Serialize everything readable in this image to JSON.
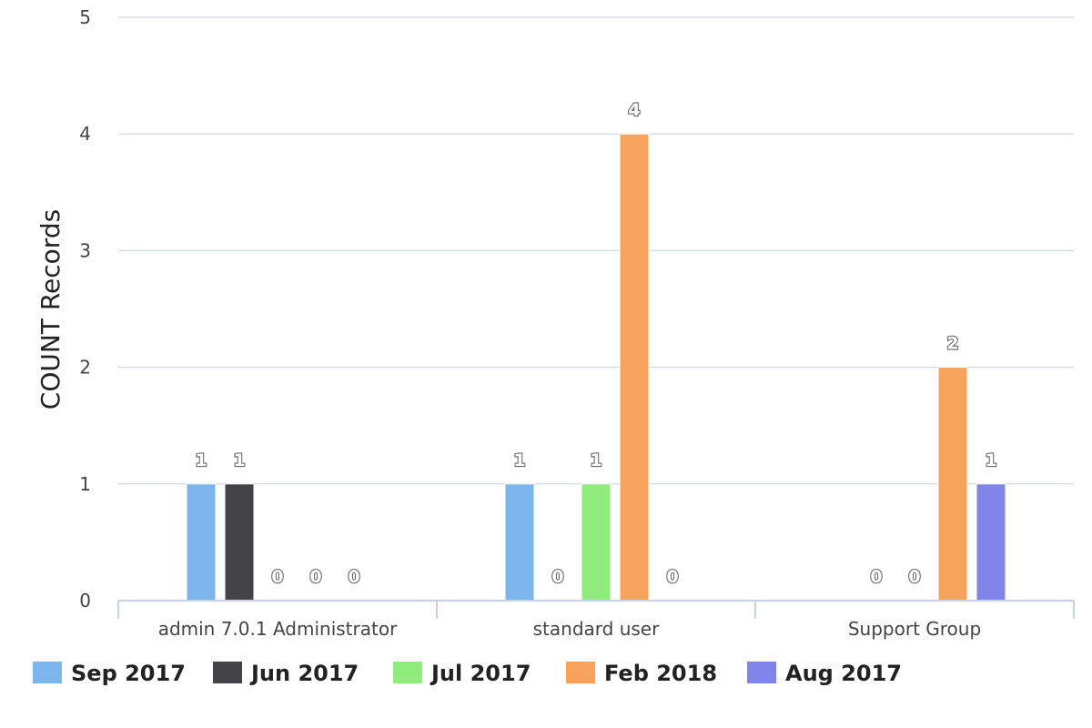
{
  "chart_data": {
    "type": "bar",
    "ylabel": "COUNT Records",
    "ylim": [
      0,
      5
    ],
    "yticks": [
      0,
      1,
      2,
      3,
      4,
      5
    ],
    "grid": true,
    "legend_position": "bottom",
    "categories": [
      "admin 7.0.1 Administrator",
      "standard user",
      "Support Group"
    ],
    "series": [
      {
        "name": "Sep 2017",
        "color": "#7cb5ec",
        "values": [
          1,
          1,
          null
        ]
      },
      {
        "name": "Jun 2017",
        "color": "#434348",
        "values": [
          1,
          0,
          0
        ]
      },
      {
        "name": "Jul 2017",
        "color": "#90ed7d",
        "values": [
          0,
          1,
          0
        ]
      },
      {
        "name": "Feb 2018",
        "color": "#f7a35c",
        "values": [
          0,
          4,
          2
        ]
      },
      {
        "name": "Aug 2017",
        "color": "#8085e9",
        "values": [
          0,
          0,
          1
        ]
      }
    ]
  }
}
